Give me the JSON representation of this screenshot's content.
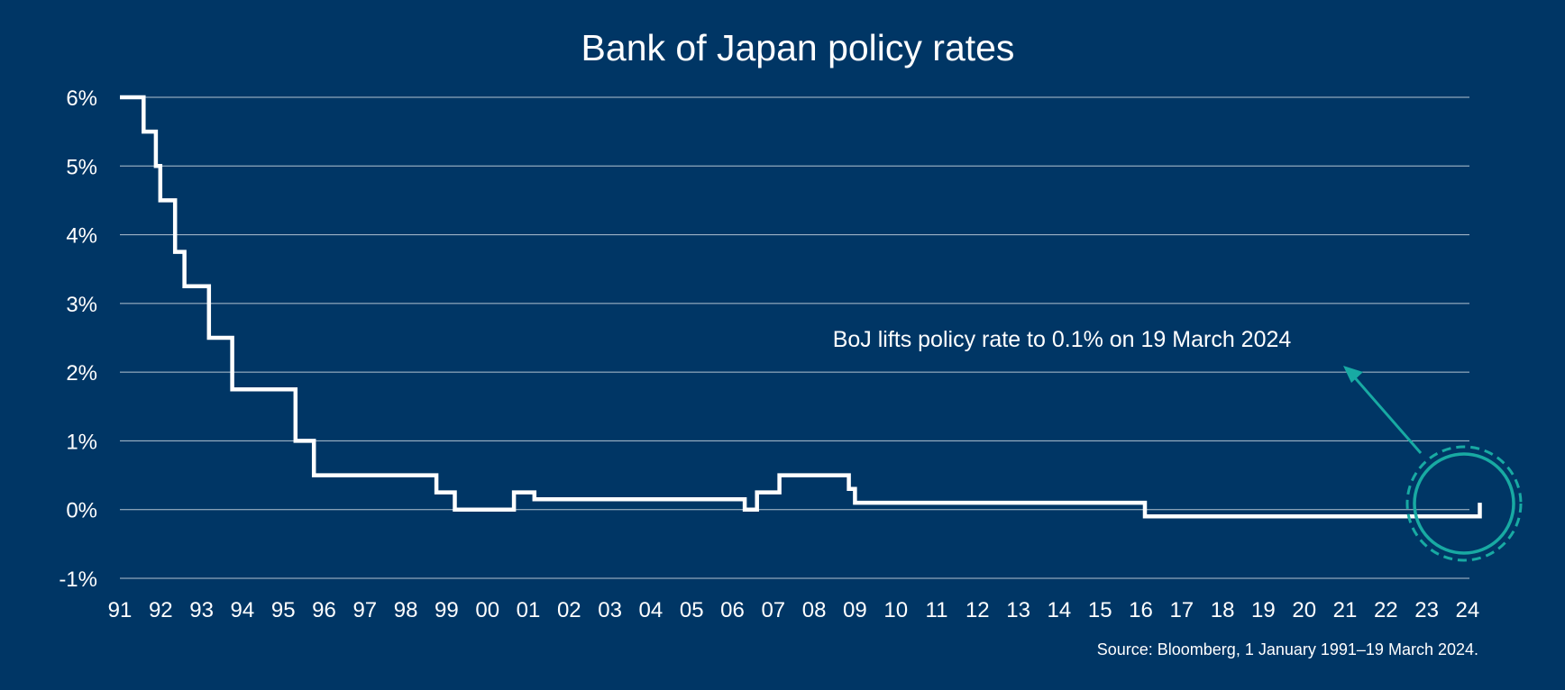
{
  "chart_data": {
    "type": "line",
    "title": "Bank of Japan policy rates",
    "xlabel": "",
    "ylabel": "",
    "ylim": [
      -1,
      6
    ],
    "xlim": [
      1991.0,
      2024.3
    ],
    "step": true,
    "grid": true,
    "legend": "none",
    "y_ticks": [
      6,
      5,
      4,
      3,
      2,
      1,
      0,
      -1
    ],
    "y_tick_labels": [
      "6%",
      "5%",
      "4%",
      "3%",
      "2%",
      "1%",
      "0%",
      "-1%"
    ],
    "x_tick_labels": [
      "91",
      "92",
      "93",
      "94",
      "95",
      "96",
      "97",
      "98",
      "99",
      "00",
      "01",
      "02",
      "03",
      "04",
      "05",
      "06",
      "07",
      "08",
      "09",
      "10",
      "11",
      "12",
      "13",
      "14",
      "15",
      "16",
      "17",
      "18",
      "19",
      "20",
      "21",
      "22",
      "23",
      "24"
    ],
    "series": [
      {
        "points": [
          [
            1991.0,
            6.0
          ],
          [
            1991.58,
            5.5
          ],
          [
            1991.88,
            5.0
          ],
          [
            1991.99,
            4.5
          ],
          [
            1992.35,
            3.75
          ],
          [
            1992.58,
            3.25
          ],
          [
            1993.18,
            2.5
          ],
          [
            1993.75,
            1.75
          ],
          [
            1995.3,
            1.0
          ],
          [
            1995.75,
            0.5
          ],
          [
            1998.75,
            0.25
          ],
          [
            1999.2,
            0.0
          ],
          [
            2000.65,
            0.25
          ],
          [
            2001.15,
            0.15
          ],
          [
            2006.3,
            0.0
          ],
          [
            2006.6,
            0.25
          ],
          [
            2007.15,
            0.5
          ],
          [
            2008.85,
            0.3
          ],
          [
            2009.0,
            0.1
          ],
          [
            2016.1,
            -0.1
          ],
          [
            2024.3,
            0.1
          ]
        ]
      }
    ],
    "annotation": "BoJ lifts policy rate to 0.1% on 19 March 2024",
    "source": "Source: Bloomberg, 1 January 1991–19 March 2024."
  },
  "colors": {
    "background": "#003665",
    "line": "#ffffff",
    "grid": "#ffffff",
    "accent": "#18aaa3"
  }
}
